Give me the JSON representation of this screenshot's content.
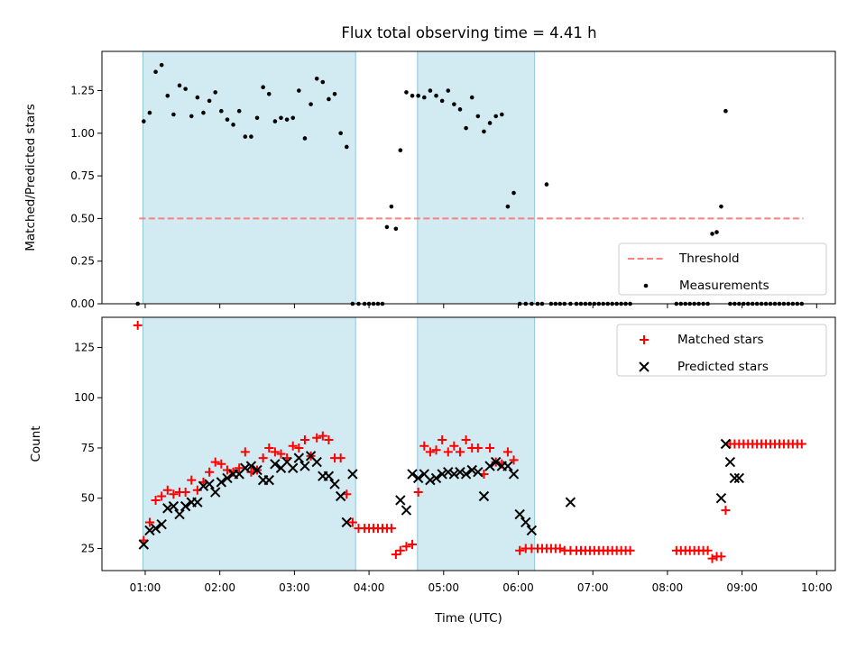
{
  "title": "Flux total observing time = 4.41 h",
  "chart_data": [
    {
      "type": "scatter",
      "ylabel": "Matched/Predicted stars",
      "ylim": [
        0,
        1.48
      ],
      "yticks": [
        0.0,
        0.25,
        0.5,
        0.75,
        1.0,
        1.25
      ],
      "ytick_labels": [
        "0.00",
        "0.25",
        "0.50",
        "0.75",
        "1.00",
        "1.25"
      ],
      "xlim": [
        0.42,
        10.25
      ],
      "shaded_intervals": [
        [
          0.97,
          3.82
        ],
        [
          4.65,
          6.22
        ]
      ],
      "shade_color": "#add8e6",
      "legend_position": "lower right",
      "legend": [
        "Threshold",
        "Measurements"
      ],
      "threshold": {
        "name": "Threshold",
        "value": 0.5,
        "x_range": [
          0.92,
          9.82
        ],
        "color": "#ff7f7f"
      },
      "series": [
        {
          "name": "Measurements",
          "color": "#000000",
          "x": [
            0.9,
            0.98,
            1.06,
            1.14,
            1.22,
            1.3,
            1.38,
            1.46,
            1.54,
            1.62,
            1.7,
            1.78,
            1.86,
            1.94,
            2.02,
            2.1,
            2.18,
            2.26,
            2.34,
            2.42,
            2.5,
            2.58,
            2.66,
            2.74,
            2.82,
            2.9,
            2.98,
            3.06,
            3.14,
            3.22,
            3.3,
            3.38,
            3.46,
            3.54,
            3.62,
            3.7,
            3.78,
            3.86,
            3.94,
            4.0,
            4.06,
            4.12,
            4.18,
            4.24,
            4.3,
            4.36,
            4.42,
            4.5,
            4.58,
            4.66,
            4.74,
            4.82,
            4.9,
            4.98,
            5.06,
            5.14,
            5.22,
            5.3,
            5.38,
            5.46,
            5.54,
            5.62,
            5.7,
            5.78,
            5.86,
            5.94,
            6.02,
            6.1,
            6.18,
            6.26,
            6.32,
            6.38,
            6.44,
            6.5,
            6.56,
            6.62,
            6.7,
            6.78,
            6.84,
            6.9,
            6.96,
            7.02,
            7.08,
            7.14,
            7.2,
            7.26,
            7.32,
            7.38,
            7.44,
            7.5,
            8.12,
            8.18,
            8.24,
            8.3,
            8.36,
            8.42,
            8.48,
            8.54,
            8.6,
            8.66,
            8.72,
            8.78,
            8.84,
            8.9,
            8.96,
            9.02,
            9.08,
            9.14,
            9.2,
            9.26,
            9.32,
            9.38,
            9.44,
            9.5,
            9.56,
            9.62,
            9.68,
            9.74,
            9.8
          ],
          "y": [
            0.0,
            1.07,
            1.12,
            1.36,
            1.4,
            1.22,
            1.11,
            1.28,
            1.26,
            1.1,
            1.21,
            1.12,
            1.19,
            1.24,
            1.13,
            1.08,
            1.05,
            1.13,
            0.98,
            0.98,
            1.09,
            1.27,
            1.23,
            1.07,
            1.09,
            1.08,
            1.09,
            1.25,
            0.97,
            1.17,
            1.32,
            1.3,
            1.2,
            1.23,
            1.0,
            0.92,
            0.0,
            0.0,
            0.0,
            0.0,
            0.0,
            0.0,
            0.0,
            0.45,
            0.57,
            0.44,
            0.9,
            1.24,
            1.22,
            1.22,
            1.21,
            1.25,
            1.22,
            1.19,
            1.25,
            1.17,
            1.14,
            1.03,
            1.21,
            1.1,
            1.01,
            1.06,
            1.1,
            1.11,
            0.57,
            0.65,
            0.0,
            0.0,
            0.0,
            0.0,
            0.0,
            0.7,
            0.0,
            0.0,
            0.0,
            0.0,
            0.0,
            0.0,
            0.0,
            0.0,
            0.0,
            0.0,
            0.0,
            0.0,
            0.0,
            0.0,
            0.0,
            0.0,
            0.0,
            0.0,
            0.0,
            0.0,
            0.0,
            0.0,
            0.0,
            0.0,
            0.0,
            0.0,
            0.41,
            0.42,
            0.57,
            1.13,
            0.0,
            0.0,
            0.0,
            0.0,
            0.0,
            0.0,
            0.0,
            0.0,
            0.0,
            0.0,
            0.0,
            0.0,
            0.0,
            0.0,
            0.0,
            0.0,
            0.0
          ]
        }
      ]
    },
    {
      "type": "scatter",
      "ylabel": "Count",
      "xlabel": "Time (UTC)",
      "ylim": [
        14,
        140
      ],
      "yticks": [
        25,
        50,
        75,
        100,
        125
      ],
      "ytick_labels": [
        "25",
        "50",
        "75",
        "100",
        "125"
      ],
      "xlim": [
        0.42,
        10.25
      ],
      "xticks": [
        1,
        2,
        3,
        4,
        5,
        6,
        7,
        8,
        9,
        10
      ],
      "xtick_labels": [
        "01:00",
        "02:00",
        "03:00",
        "04:00",
        "05:00",
        "06:00",
        "07:00",
        "08:00",
        "09:00",
        "10:00"
      ],
      "shaded_intervals": [
        [
          0.97,
          3.82
        ],
        [
          4.65,
          6.22
        ]
      ],
      "shade_color": "#add8e6",
      "legend_position": "upper right",
      "legend": [
        "Matched stars",
        "Predicted stars"
      ],
      "series": [
        {
          "name": "Matched stars",
          "marker": "+",
          "color": "#ff0000",
          "x": [
            0.9,
            0.98,
            1.06,
            1.14,
            1.22,
            1.3,
            1.38,
            1.46,
            1.54,
            1.62,
            1.7,
            1.78,
            1.86,
            1.94,
            2.02,
            2.1,
            2.18,
            2.26,
            2.34,
            2.42,
            2.5,
            2.58,
            2.66,
            2.74,
            2.82,
            2.9,
            2.98,
            3.06,
            3.14,
            3.22,
            3.3,
            3.38,
            3.46,
            3.54,
            3.62,
            3.7,
            3.78,
            3.86,
            3.94,
            4.0,
            4.06,
            4.12,
            4.18,
            4.24,
            4.3,
            4.36,
            4.42,
            4.5,
            4.58,
            4.66,
            4.74,
            4.82,
            4.9,
            4.98,
            5.06,
            5.14,
            5.22,
            5.3,
            5.38,
            5.46,
            5.54,
            5.62,
            5.7,
            5.78,
            5.86,
            5.94,
            6.02,
            6.1,
            6.18,
            6.26,
            6.32,
            6.38,
            6.44,
            6.5,
            6.56,
            6.62,
            6.7,
            6.78,
            6.84,
            6.9,
            6.96,
            7.02,
            7.08,
            7.14,
            7.2,
            7.26,
            7.32,
            7.38,
            7.44,
            7.5,
            8.12,
            8.18,
            8.24,
            8.3,
            8.36,
            8.42,
            8.48,
            8.54,
            8.6,
            8.66,
            8.72,
            8.78,
            8.84,
            8.9,
            8.96,
            9.02,
            9.08,
            9.14,
            9.2,
            9.26,
            9.32,
            9.38,
            9.44,
            9.5,
            9.56,
            9.62,
            9.68,
            9.74,
            9.8
          ],
          "y": [
            136,
            29,
            38,
            49,
            51,
            54,
            52,
            53,
            53,
            59,
            54,
            58,
            63,
            68,
            67,
            64,
            63,
            65,
            73,
            63,
            64,
            70,
            75,
            73,
            72,
            70,
            76,
            75,
            79,
            71,
            80,
            81,
            79,
            70,
            70,
            52,
            38,
            35,
            35,
            35,
            35,
            35,
            35,
            35,
            35,
            22,
            24,
            26,
            27,
            53,
            76,
            73,
            74,
            79,
            73,
            76,
            73,
            79,
            75,
            75,
            62,
            75,
            68,
            67,
            73,
            69,
            24,
            25,
            25,
            25,
            25,
            25,
            25,
            25,
            25,
            24,
            24,
            24,
            24,
            24,
            24,
            24,
            24,
            24,
            24,
            24,
            24,
            24,
            24,
            24,
            24,
            24,
            24,
            24,
            24,
            24,
            24,
            24,
            20,
            21,
            21,
            44,
            77,
            77,
            77,
            77,
            77,
            77,
            77,
            77,
            77,
            77,
            77,
            77,
            77,
            77,
            77,
            77,
            77
          ]
        },
        {
          "name": "Predicted stars",
          "marker": "x",
          "color": "#000000",
          "x": [
            0.98,
            1.06,
            1.14,
            1.22,
            1.3,
            1.38,
            1.46,
            1.54,
            1.62,
            1.7,
            1.78,
            1.86,
            1.94,
            2.02,
            2.1,
            2.18,
            2.26,
            2.34,
            2.42,
            2.5,
            2.58,
            2.66,
            2.74,
            2.82,
            2.9,
            2.98,
            3.06,
            3.14,
            3.22,
            3.3,
            3.38,
            3.46,
            3.54,
            3.62,
            3.7,
            3.78,
            4.42,
            4.5,
            4.58,
            4.66,
            4.74,
            4.82,
            4.9,
            4.98,
            5.06,
            5.14,
            5.22,
            5.3,
            5.38,
            5.46,
            5.54,
            5.62,
            5.7,
            5.78,
            5.86,
            5.94,
            6.02,
            6.1,
            6.18,
            6.7,
            8.72,
            8.78,
            8.84,
            8.9,
            8.96
          ],
          "y": [
            27,
            34,
            35,
            37,
            45,
            46,
            42,
            46,
            48,
            48,
            56,
            57,
            53,
            58,
            60,
            62,
            62,
            65,
            66,
            64,
            59,
            59,
            67,
            65,
            68,
            65,
            70,
            66,
            71,
            68,
            61,
            61,
            57,
            51,
            38,
            62,
            49,
            44,
            62,
            60,
            62,
            59,
            60,
            62,
            63,
            62,
            63,
            62,
            64,
            63,
            51,
            66,
            68,
            66,
            66,
            62,
            42,
            38,
            34,
            48,
            50,
            77,
            68,
            60,
            60
          ]
        }
      ]
    }
  ]
}
